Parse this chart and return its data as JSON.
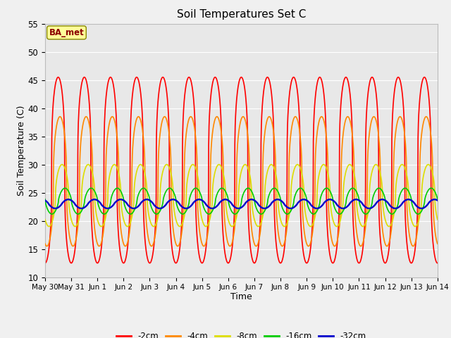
{
  "title": "Soil Temperatures Set C",
  "xlabel": "Time",
  "ylabel": "Soil Temperature (C)",
  "ylim": [
    10,
    55
  ],
  "xlim_days": [
    0,
    15
  ],
  "tick_labels": [
    "May 30",
    "May 31",
    "Jun 1",
    "Jun 2",
    "Jun 3",
    "Jun 4",
    "Jun 5",
    "Jun 6",
    "Jun 7",
    "Jun 8",
    "Jun 9",
    "Jun 10",
    "Jun 11",
    "Jun 12",
    "Jun 13",
    "Jun 14"
  ],
  "colors": {
    "-2cm": "#ff0000",
    "-4cm": "#ff8800",
    "-8cm": "#dddd00",
    "-16cm": "#00cc00",
    "-32cm": "#0000cc"
  },
  "legend_label": "BA_met",
  "legend_box_facecolor": "#ffff99",
  "legend_box_edgecolor": "#888800",
  "fig_facecolor": "#f0f0f0",
  "ax_facecolor": "#e8e8e8",
  "grid_color": "#ffffff",
  "linewidth": 1.2,
  "depth_params": {
    "-2cm": {
      "mean": 29.0,
      "amp": 16.5,
      "phase": 1.57,
      "sharpness": 3.0
    },
    "-4cm": {
      "mean": 27.0,
      "amp": 11.5,
      "phase": 2.0,
      "sharpness": 2.5
    },
    "-8cm": {
      "mean": 24.5,
      "amp": 5.5,
      "phase": 2.5,
      "sharpness": 2.0
    },
    "-16cm": {
      "mean": 23.5,
      "amp": 2.3,
      "phase": 3.2,
      "sharpness": 1.5
    },
    "-32cm": {
      "mean": 23.0,
      "amp": 0.8,
      "phase": 4.0,
      "sharpness": 1.2
    }
  }
}
